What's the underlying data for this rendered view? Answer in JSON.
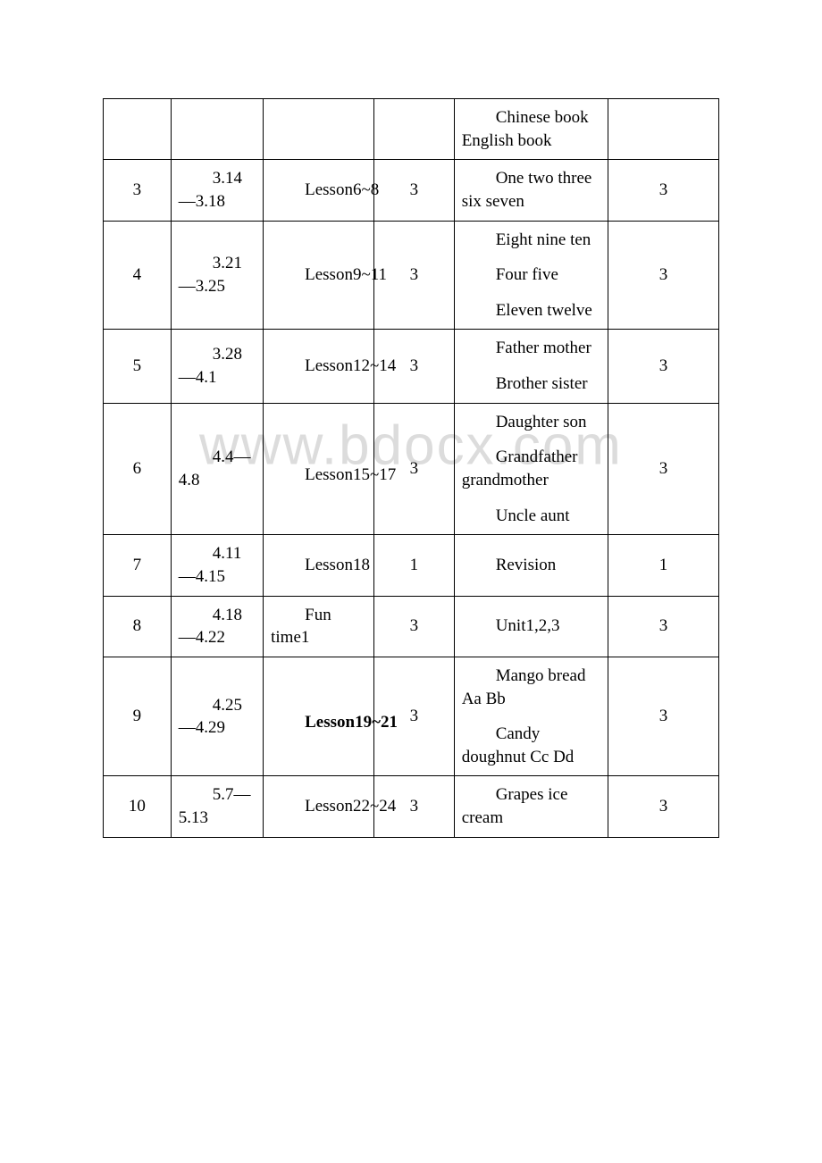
{
  "watermark": "www.bdocx.com",
  "table": {
    "columns": [
      "col-1",
      "col-2",
      "col-3",
      "col-4",
      "col-5",
      "col-6"
    ],
    "rows": [
      {
        "c1": "",
        "c2": "",
        "c3": "",
        "c4": "",
        "c5": [
          {
            "text": "Chinese book English book",
            "cls": "para first"
          }
        ],
        "c6": ""
      },
      {
        "c1": "3",
        "c2": [
          {
            "text": "3.14—3.18",
            "cls": "indent"
          }
        ],
        "c3": [
          {
            "text": "Lesson6~8",
            "cls": "indent"
          }
        ],
        "c4": "3",
        "c5": [
          {
            "text": "One two three six seven",
            "cls": "para first"
          }
        ],
        "c6": "3"
      },
      {
        "c1": "4",
        "c2": [
          {
            "text": "3.21—3.25",
            "cls": "indent"
          }
        ],
        "c3": [
          {
            "text": "Lesson9~11",
            "cls": "indent"
          }
        ],
        "c4": "3",
        "c5": [
          {
            "text": "Eight nine ten",
            "cls": "para first"
          },
          {
            "text": "Four five",
            "cls": "para"
          },
          {
            "text": "Eleven twelve",
            "cls": "para"
          }
        ],
        "c6": "3"
      },
      {
        "c1": "5",
        "c2": [
          {
            "text": "3.28—4.1",
            "cls": "indent"
          }
        ],
        "c3": [
          {
            "text": "Lesson12~14",
            "cls": "indent"
          }
        ],
        "c4": "3",
        "c5": [
          {
            "text": "Father mother",
            "cls": "para first"
          },
          {
            "text": "Brother sister",
            "cls": "para"
          }
        ],
        "c6": "3"
      },
      {
        "c1": "6",
        "c2": [
          {
            "text": "4.4—4.8",
            "cls": "indent"
          }
        ],
        "c3_html": [
          {
            "text": "",
            "cls": "para first"
          },
          {
            "text": "Lesson15~17",
            "cls": "para"
          }
        ],
        "c4": "3",
        "c5": [
          {
            "text": "Daughter son",
            "cls": "para first"
          },
          {
            "text": "Grandfather grandmother",
            "cls": "para"
          },
          {
            "text": "Uncle aunt",
            "cls": "para"
          }
        ],
        "c6": "3"
      },
      {
        "c1": "7",
        "c2": [
          {
            "text": "4.11—4.15",
            "cls": "indent"
          }
        ],
        "c3": [
          {
            "text": "Lesson18",
            "cls": "indent"
          }
        ],
        "c4": "1",
        "c5": [
          {
            "text": "Revision",
            "cls": "para first"
          }
        ],
        "c6": "1"
      },
      {
        "c1": "8",
        "c2": [
          {
            "text": "4.18—4.22",
            "cls": "indent"
          }
        ],
        "c3": [
          {
            "text": "Fun time1",
            "cls": "indent"
          }
        ],
        "c4": "3",
        "c5": [
          {
            "text": "Unit1,2,3",
            "cls": "para first"
          }
        ],
        "c6": "3"
      },
      {
        "c1": "9",
        "c2": [
          {
            "text": "4.25—4.29",
            "cls": "indent"
          }
        ],
        "c3_bold": [
          {
            "text": "",
            "cls": "para first"
          },
          {
            "text": "Lesson19~21",
            "cls": "para bold"
          }
        ],
        "c4": "3",
        "c5": [
          {
            "text": "Mango bread Aa Bb",
            "cls": "para first"
          },
          {
            "text": "Candy doughnut Cc Dd",
            "cls": "para"
          }
        ],
        "c6": "3"
      },
      {
        "c1": "10",
        "c2": [
          {
            "text": "5.7—5.13",
            "cls": "indent"
          }
        ],
        "c3": [
          {
            "text": "Lesson22~24",
            "cls": "indent"
          }
        ],
        "c4": "3",
        "c5": [
          {
            "text": "Grapes ice cream",
            "cls": "para first"
          }
        ],
        "c6": "3"
      }
    ]
  }
}
